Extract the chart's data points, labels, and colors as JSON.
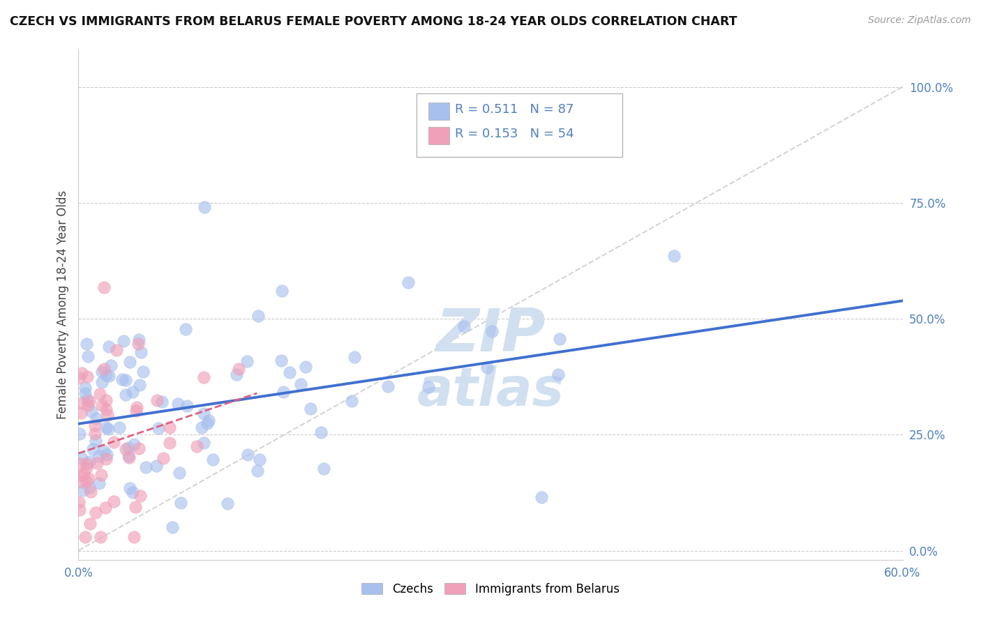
{
  "title": "CZECH VS IMMIGRANTS FROM BELARUS FEMALE POVERTY AMONG 18-24 YEAR OLDS CORRELATION CHART",
  "source": "Source: ZipAtlas.com",
  "ylabel": "Female Poverty Among 18-24 Year Olds",
  "xlim": [
    0.0,
    0.6
  ],
  "ylim": [
    -0.02,
    1.08
  ],
  "yticks": [
    0.0,
    0.25,
    0.5,
    0.75,
    1.0
  ],
  "ytick_labels": [
    "0.0%",
    "25.0%",
    "50.0%",
    "75.0%",
    "100.0%"
  ],
  "czech_R": 0.511,
  "czech_N": 87,
  "belarus_R": 0.153,
  "belarus_N": 54,
  "czech_color": "#a8c0ee",
  "belarus_color": "#f0a0b8",
  "czech_line_color": "#4070d0",
  "belarus_line_color": "#e06080",
  "diagonal_color": "#d0d0d0",
  "background_color": "#ffffff",
  "grid_color": "#cccccc",
  "legend_czechs": "Czechs",
  "legend_belarus": "Immigrants from Belarus",
  "tick_color": "#5080c0",
  "watermark_color": "#d0e0f0"
}
